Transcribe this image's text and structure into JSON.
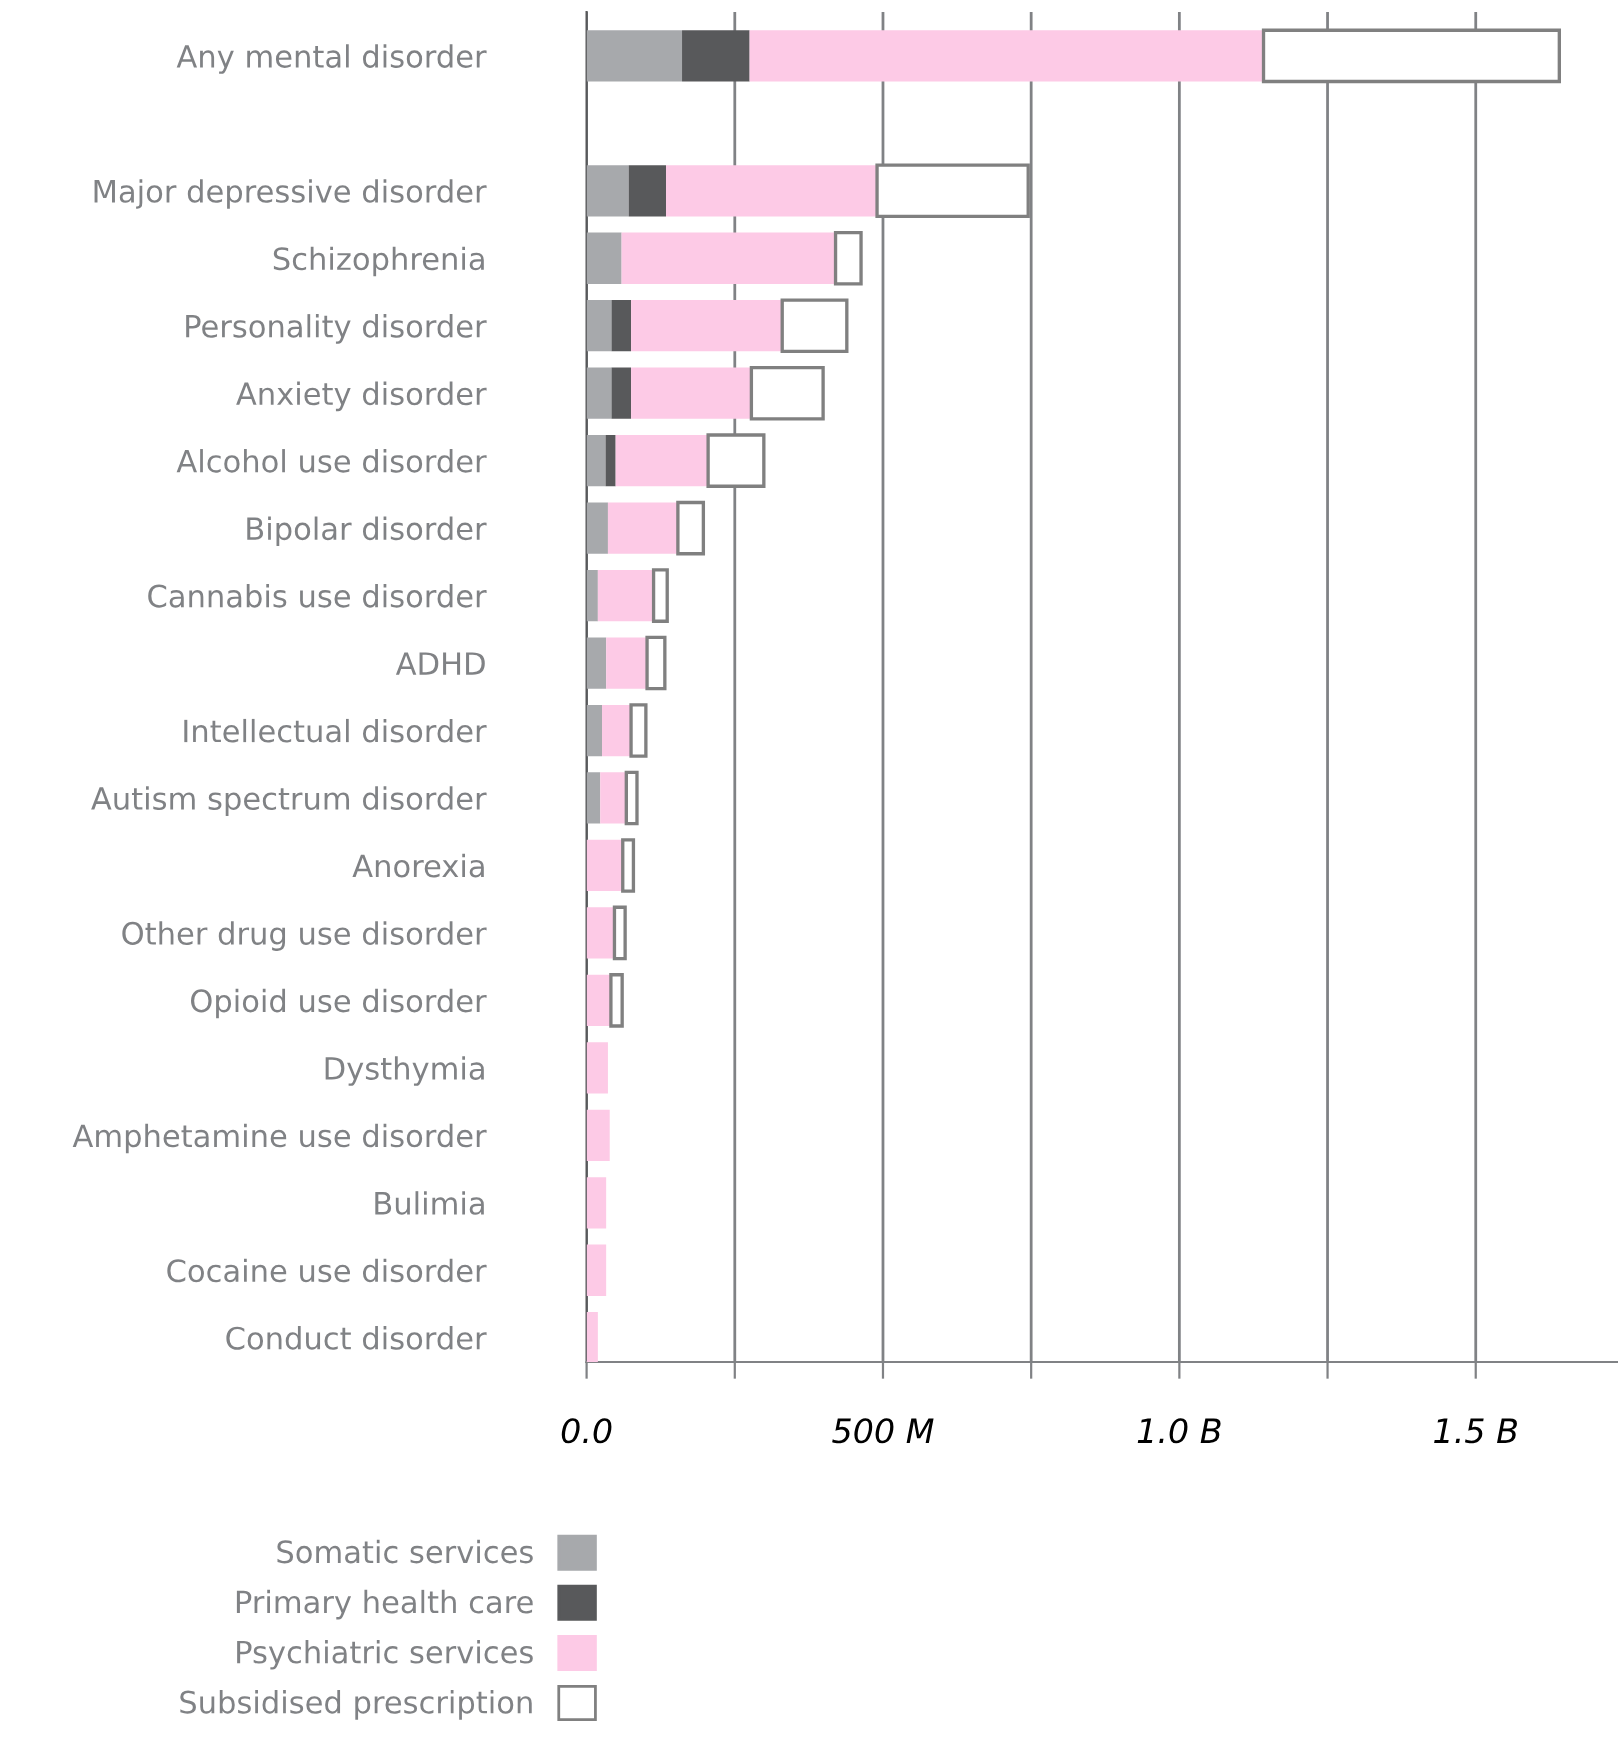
{
  "chart_data": {
    "type": "bar",
    "orientation": "horizontal",
    "stacked": true,
    "categories": [
      "Any mental disorder",
      null,
      "Major depressive disorder",
      "Schizophrenia",
      "Personality disorder",
      "Anxiety disorder",
      "Alcohol use disorder",
      "Bipolar disorder",
      "Cannabis use disorder",
      "ADHD",
      "Intellectual disorder",
      "Autism spectrum disorder",
      "Anorexia",
      "Other drug use disorder",
      "Opioid use disorder",
      "Dysthymia",
      "Amphetamine use disorder",
      "Bulimia",
      "Cocaine use disorder",
      "Conduct disorder"
    ],
    "series": [
      {
        "name": "Somatic services",
        "color": "#a7a9ac",
        "values": [
          161000000,
          null,
          71000000,
          59000000,
          42000000,
          42000000,
          32000000,
          36000000,
          19000000,
          33000000,
          26000000,
          23000000,
          null,
          null,
          null,
          null,
          null,
          null,
          null,
          null
        ]
      },
      {
        "name": "Primary health care",
        "color": "#58595b",
        "values": [
          114000000,
          null,
          63000000,
          null,
          33000000,
          33000000,
          17000000,
          null,
          null,
          null,
          null,
          null,
          null,
          null,
          null,
          null,
          null,
          null,
          null,
          null
        ]
      },
      {
        "name": "Psychiatric services",
        "color": "#fdcae6",
        "values": [
          867000000,
          null,
          356000000,
          361000000,
          255000000,
          203000000,
          156000000,
          118000000,
          94000000,
          69000000,
          49000000,
          44000000,
          61000000,
          47000000,
          41000000,
          36000000,
          39000000,
          33000000,
          33000000,
          19000000
        ]
      },
      {
        "name": "Subsidised prescription",
        "color": "#ffffff",
        "values": [
          499000000,
          null,
          255000000,
          43000000,
          109000000,
          121000000,
          94000000,
          43000000,
          23000000,
          30000000,
          25000000,
          18000000,
          18000000,
          18000000,
          19000000,
          null,
          null,
          null,
          null,
          null
        ]
      }
    ],
    "xlim": [
      0,
      1740000000
    ],
    "xticks": [
      {
        "value": 0,
        "label": "0.0"
      },
      {
        "value": 250000000,
        "label": null
      },
      {
        "value": 500000000,
        "label": "500 M"
      },
      {
        "value": 750000000,
        "label": null
      },
      {
        "value": 1000000000,
        "label": "1.0 B"
      },
      {
        "value": 1250000000,
        "label": null
      },
      {
        "value": 1500000000,
        "label": "1.5 B"
      }
    ],
    "grid": "x",
    "legend": "bottom left"
  }
}
